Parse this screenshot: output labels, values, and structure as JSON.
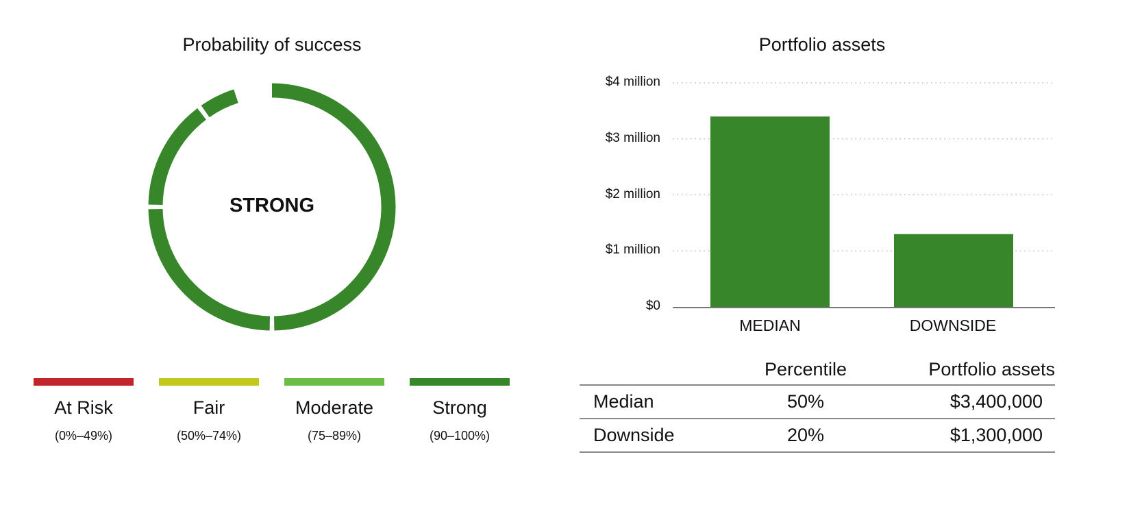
{
  "left": {
    "title": "Probability of success",
    "status": "STRONG",
    "legend": [
      {
        "label": "At Risk",
        "range": "(0%–49%)",
        "color": "#c0262a"
      },
      {
        "label": "Fair",
        "range": "(50%–74%)",
        "color": "#c3c81d"
      },
      {
        "label": "Moderate",
        "range": "(75–89%)",
        "color": "#6bbd45"
      },
      {
        "label": "Strong",
        "range": "(90–100%)",
        "color": "#37872a"
      }
    ]
  },
  "table": {
    "headers": [
      "",
      "Percentile",
      "Portfolio assets"
    ],
    "rows": [
      [
        "Median",
        "50%",
        "$3,400,000"
      ],
      [
        "Downside",
        "20%",
        "$1,300,000"
      ]
    ]
  },
  "chart_data": [
    {
      "type": "pie",
      "title": "Probability of success",
      "value_percent": 95,
      "segment_breaks_percent": [
        50,
        75,
        90
      ],
      "center_label": "STRONG",
      "color": "#37872a"
    },
    {
      "type": "bar",
      "title": "Portfolio assets",
      "categories": [
        "MEDIAN",
        "DOWNSIDE"
      ],
      "values": [
        3400000,
        1300000
      ],
      "ylim": [
        0,
        4000000
      ],
      "yticks": [
        0,
        1000000,
        2000000,
        3000000,
        4000000
      ],
      "ytick_labels": [
        "$0",
        "$1 million",
        "$2 million",
        "$3 million",
        "$4 million"
      ],
      "grid": true,
      "color": "#37872a"
    }
  ]
}
